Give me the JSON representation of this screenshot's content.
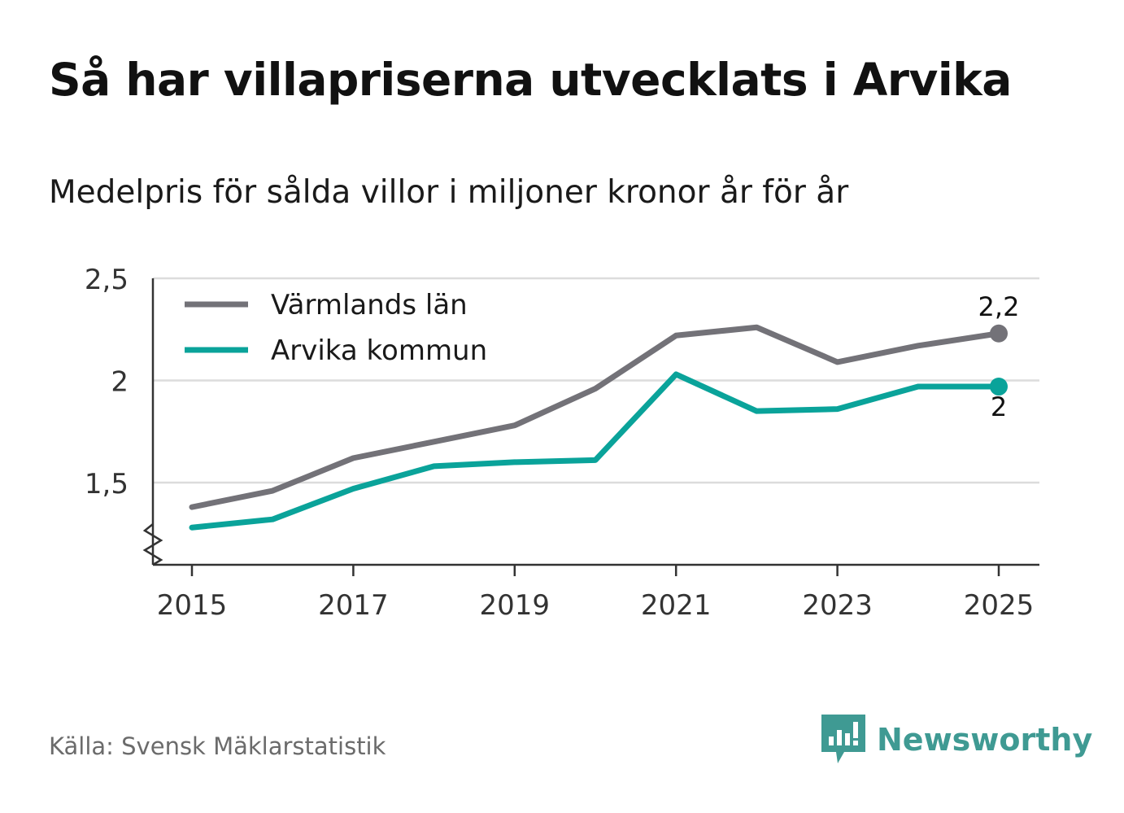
{
  "title": "Så har villapriserna utvecklats i Arvika",
  "subtitle": "Medelpris för sålda villor i miljoner kronor år för år",
  "source": "Källa: Svensk Mäklarstatistik",
  "brand": {
    "name": "Newsworthy",
    "icon": "newsworthy-logo-icon"
  },
  "colors": {
    "varmland": "#737278",
    "arvika": "#0aa39a",
    "grid": "#dcdcdc",
    "axis": "#333333",
    "brand": "#3f9a93"
  },
  "chart_data": {
    "type": "line",
    "title": "Så har villapriserna utvecklats i Arvika",
    "xlabel": "",
    "ylabel": "Medelpris för sålda villor i miljoner kronor",
    "x": [
      2015,
      2016,
      2017,
      2018,
      2019,
      2020,
      2021,
      2022,
      2023,
      2024,
      2025
    ],
    "xticks": [
      "2015",
      "2017",
      "2019",
      "2021",
      "2023",
      "2025"
    ],
    "yticks": [
      "1,5",
      "2",
      "2,5"
    ],
    "ylim": [
      1.1,
      2.5
    ],
    "axis_break": true,
    "grid": true,
    "legend_position": "top-left",
    "series": [
      {
        "name": "Värmlands län",
        "values": [
          1.38,
          1.46,
          1.62,
          1.7,
          1.78,
          1.96,
          2.22,
          2.26,
          2.09,
          2.17,
          2.23
        ],
        "end_label": "2,2"
      },
      {
        "name": "Arvika kommun",
        "values": [
          1.28,
          1.32,
          1.47,
          1.58,
          1.6,
          1.61,
          2.03,
          1.85,
          1.86,
          1.97,
          1.97
        ],
        "end_label": "2"
      }
    ]
  }
}
